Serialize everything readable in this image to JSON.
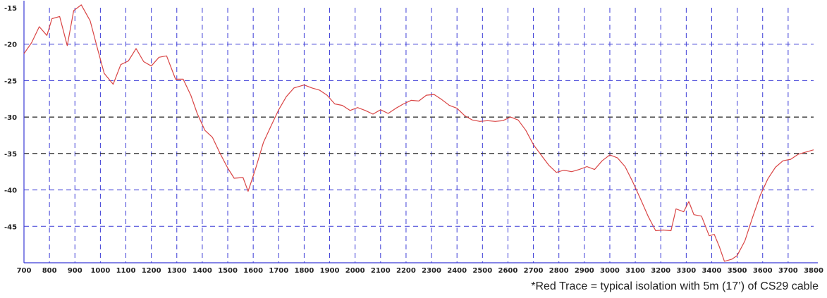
{
  "chart_data": {
    "type": "line",
    "title": "",
    "xlabel": "",
    "ylabel": "",
    "xlim": [
      700,
      3800
    ],
    "ylim": [
      -50,
      -15
    ],
    "x_ticks": [
      700,
      800,
      900,
      1000,
      1100,
      1200,
      1300,
      1400,
      1500,
      1600,
      1700,
      1800,
      1900,
      2000,
      2100,
      2200,
      2300,
      2400,
      2500,
      2600,
      2700,
      2800,
      2900,
      3000,
      3100,
      3200,
      3300,
      3400,
      3500,
      3600,
      3700,
      3800
    ],
    "x_tick_labels": [
      "700",
      "800",
      "900",
      "1000",
      "1100",
      "1200",
      "1300",
      "1400",
      "1500",
      "1600",
      "1700",
      "1800",
      "1900",
      "2000",
      "2100",
      "2200",
      "2300",
      "2400",
      "2500",
      "2600",
      "2700",
      "2800",
      "2900",
      "3000",
      "3100",
      "3200",
      "3300",
      "3400",
      "3500",
      "3600",
      "3700",
      "3800"
    ],
    "y_ticks": [
      -15,
      -20,
      -25,
      -30,
      -35,
      -40,
      -45
    ],
    "y_tick_labels": [
      "-15",
      "-20",
      "-25",
      "-30",
      "-35",
      "-40",
      "-45"
    ],
    "grid": true,
    "grid_color": "#3b3bd6",
    "grid_dark_lines_y": [
      -30,
      -35
    ],
    "grid_dark_color": "#333333",
    "axis_color": "#3b3bd6",
    "series": [
      {
        "color": "#d94545",
        "x": [
          700,
          730,
          760,
          790,
          810,
          840,
          870,
          895,
          925,
          960,
          990,
          1015,
          1050,
          1080,
          1110,
          1140,
          1170,
          1200,
          1230,
          1260,
          1295,
          1325,
          1355,
          1380,
          1410,
          1440,
          1470,
          1500,
          1525,
          1560,
          1580,
          1610,
          1640,
          1670,
          1700,
          1730,
          1760,
          1800,
          1830,
          1860,
          1890,
          1920,
          1950,
          1980,
          2010,
          2040,
          2070,
          2100,
          2130,
          2160,
          2190,
          2220,
          2250,
          2280,
          2310,
          2340,
          2370,
          2400,
          2430,
          2460,
          2490,
          2520,
          2550,
          2580,
          2610,
          2640,
          2670,
          2700,
          2730,
          2760,
          2790,
          2820,
          2850,
          2880,
          2910,
          2940,
          2970,
          3000,
          3030,
          3060,
          3090,
          3120,
          3150,
          3180,
          3210,
          3240,
          3260,
          3290,
          3310,
          3330,
          3360,
          3390,
          3410,
          3430,
          3450,
          3480,
          3500,
          3530,
          3560,
          3590,
          3620,
          3650,
          3680,
          3710,
          3740,
          3770,
          3800
        ],
        "y": [
          -21.3,
          -19.8,
          -17.6,
          -18.8,
          -16.5,
          -16.2,
          -20.2,
          -15.4,
          -14.6,
          -16.8,
          -20.8,
          -24.0,
          -25.5,
          -22.8,
          -22.3,
          -20.6,
          -22.4,
          -23.0,
          -21.8,
          -21.6,
          -24.8,
          -24.8,
          -27.0,
          -29.5,
          -31.8,
          -32.8,
          -35.0,
          -37.0,
          -38.4,
          -38.3,
          -40.2,
          -37.0,
          -33.5,
          -31.2,
          -29.0,
          -27.2,
          -26.0,
          -25.6,
          -26.0,
          -26.3,
          -27.0,
          -28.2,
          -28.4,
          -29.1,
          -28.7,
          -29.1,
          -29.6,
          -29.0,
          -29.5,
          -28.8,
          -28.2,
          -27.7,
          -27.8,
          -27.0,
          -26.9,
          -27.6,
          -28.4,
          -28.8,
          -29.8,
          -30.4,
          -30.6,
          -30.5,
          -30.6,
          -30.5,
          -30.0,
          -30.4,
          -31.8,
          -33.8,
          -35.2,
          -36.6,
          -37.6,
          -37.3,
          -37.5,
          -37.2,
          -36.8,
          -37.2,
          -36.0,
          -35.2,
          -35.6,
          -36.8,
          -38.9,
          -41.2,
          -43.6,
          -45.6,
          -45.5,
          -45.6,
          -42.6,
          -43.0,
          -41.6,
          -43.4,
          -43.6,
          -46.3,
          -46.1,
          -47.8,
          -49.8,
          -49.5,
          -49.0,
          -47.0,
          -43.8,
          -40.8,
          -38.5,
          -36.9,
          -36.0,
          -35.8,
          -35.1,
          -34.8,
          -34.5
        ]
      }
    ],
    "annotation": "*Red Trace = typical isolation with 5m (17’) of CS29 cable"
  }
}
